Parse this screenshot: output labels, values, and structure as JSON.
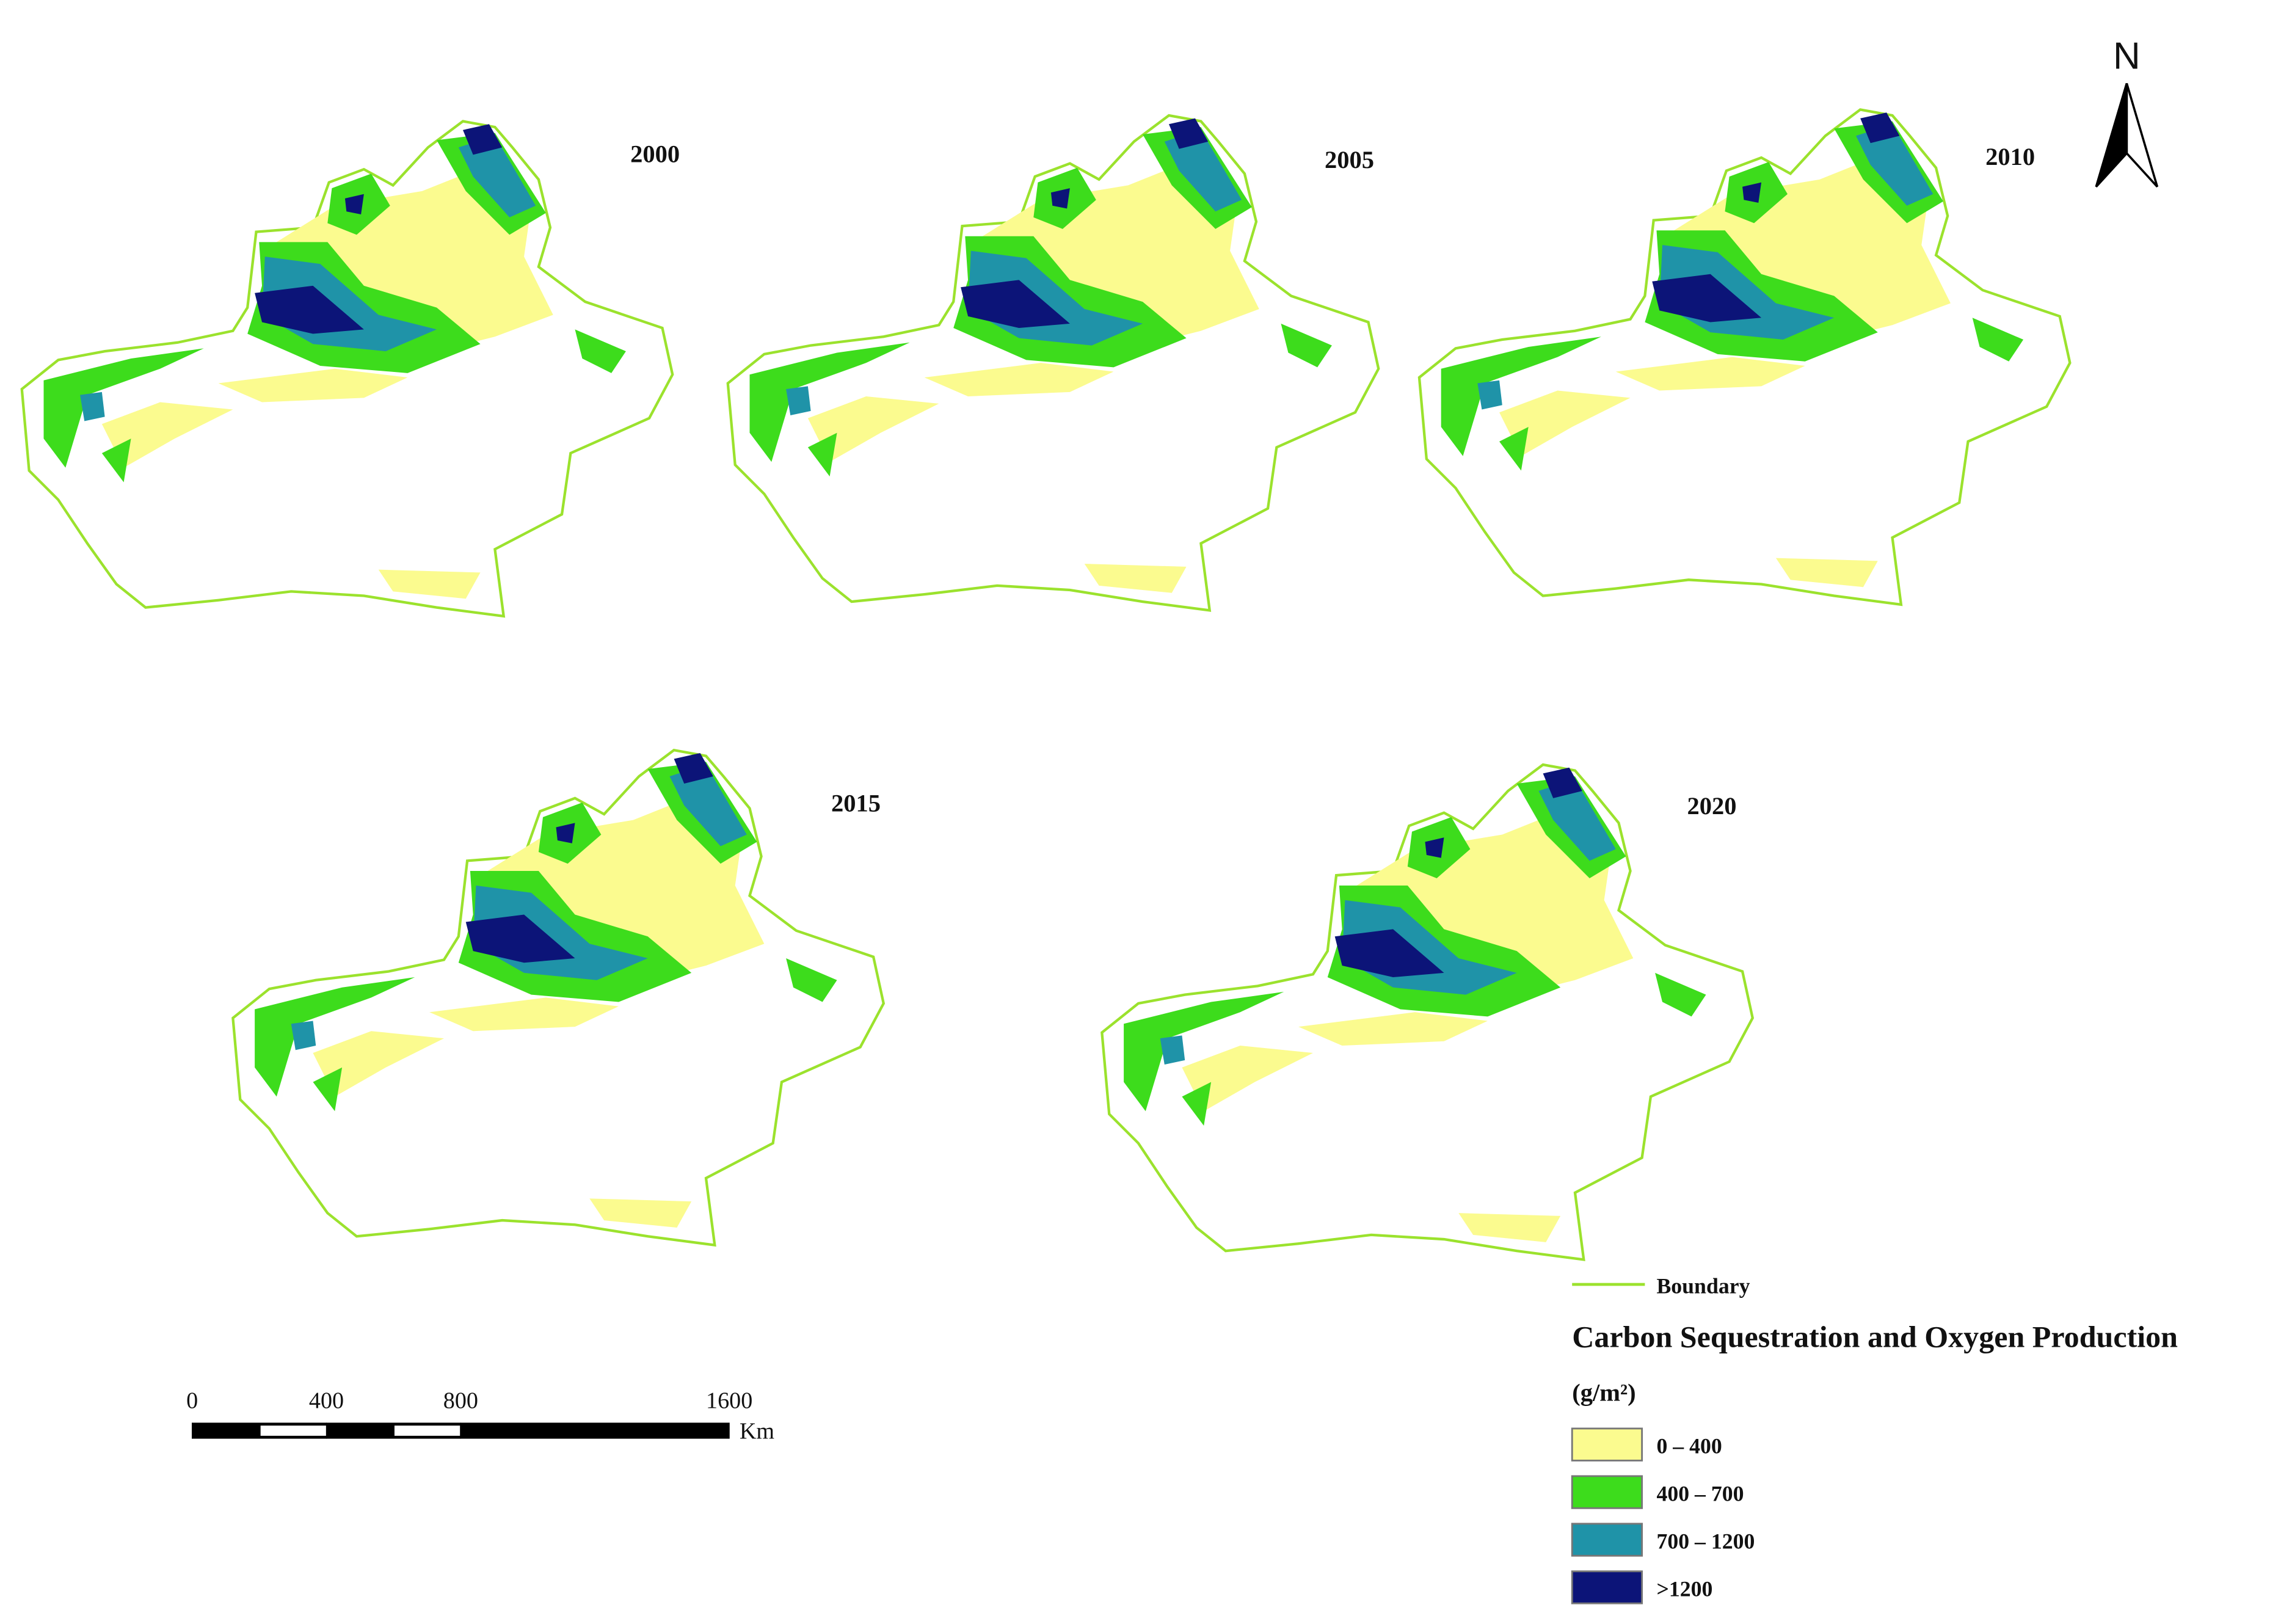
{
  "panels": [
    {
      "year": "2000"
    },
    {
      "year": "2005"
    },
    {
      "year": "2010"
    },
    {
      "year": "2015"
    },
    {
      "year": "2020"
    }
  ],
  "north_arrow": {
    "label": "N"
  },
  "scale_bar": {
    "ticks": [
      0,
      400,
      800,
      1600
    ],
    "range": [
      0,
      1600
    ],
    "unit": "Km"
  },
  "legend": {
    "boundary": {
      "label": "Boundary",
      "color": "#9be22d"
    },
    "title": "Carbon Sequestration and Oxygen Production",
    "unit": "(g/m²)",
    "items": [
      {
        "label": "0 – 400",
        "color": "#fbfb8f"
      },
      {
        "label": "400 – 700",
        "color": "#3ddc1c"
      },
      {
        "label": "700 – 1200",
        "color": "#1f93a8"
      },
      {
        "label": ">1200",
        "color": "#0c1478"
      }
    ]
  }
}
